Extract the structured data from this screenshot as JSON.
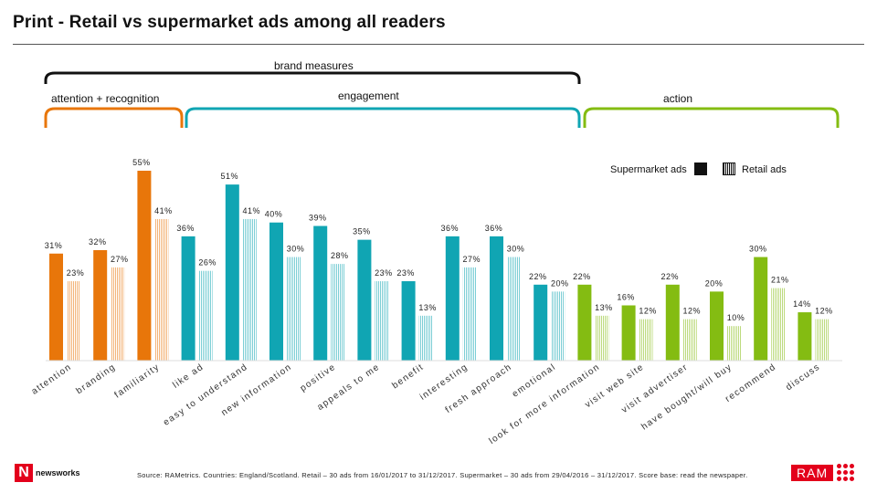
{
  "title": "Print - Retail vs supermarket ads among all readers",
  "headers": {
    "brand_measures": "brand measures",
    "attention_recognition": "attention + recognition",
    "engagement": "engagement",
    "action": "action"
  },
  "legend": {
    "supermarket": "Supermarket ads",
    "retail": "Retail ads"
  },
  "colors": {
    "orange": "#e8760a",
    "teal": "#10a5b3",
    "green": "#84bc12",
    "brace_black": "#111111"
  },
  "source": "Source: RAMetrics. Countries: England/Scotland. Retail – 30 ads from 16/01/2017 to 31/12/2017. Supermarket – 30 ads from 29/04/2016 – 31/12/2017. Score base: read the newspaper.",
  "logos": {
    "newsworks": "newsworks",
    "newsworks_mark": "N",
    "ram": "RAM"
  },
  "chart_data": {
    "type": "bar",
    "title": "Print - Retail vs supermarket ads among all readers",
    "ylim": [
      0,
      60
    ],
    "grid": false,
    "legend_position": "top-right",
    "series": [
      {
        "name": "Supermarket ads",
        "pattern": "solid"
      },
      {
        "name": "Retail ads",
        "pattern": "hatched"
      }
    ],
    "categories": [
      {
        "name": "attention",
        "group": "attention + recognition",
        "color": "#e8760a",
        "supermarket": 31,
        "retail": 23,
        "sup_label": "31%",
        "ret_label": "23%"
      },
      {
        "name": "branding",
        "group": "attention + recognition",
        "color": "#e8760a",
        "supermarket": 32,
        "retail": 27,
        "sup_label": "32%",
        "ret_label": "27%"
      },
      {
        "name": "familiarity",
        "group": "attention + recognition",
        "color": "#e8760a",
        "supermarket": 55,
        "retail": 41,
        "sup_label": "55%",
        "ret_label": "41%"
      },
      {
        "name": "like ad",
        "group": "engagement",
        "color": "#10a5b3",
        "supermarket": 36,
        "retail": 26,
        "sup_label": "36%",
        "ret_label": "26%"
      },
      {
        "name": "easy to understand",
        "group": "engagement",
        "color": "#10a5b3",
        "supermarket": 51,
        "retail": 41,
        "sup_label": "51%",
        "ret_label": "41%"
      },
      {
        "name": "new information",
        "group": "engagement",
        "color": "#10a5b3",
        "supermarket": 40,
        "retail": 30,
        "sup_label": "40%",
        "ret_label": "30%"
      },
      {
        "name": "positive",
        "group": "engagement",
        "color": "#10a5b3",
        "supermarket": 39,
        "retail": 28,
        "sup_label": "39%",
        "ret_label": "28%"
      },
      {
        "name": "appeals to me",
        "group": "engagement",
        "color": "#10a5b3",
        "supermarket": 35,
        "retail": 23,
        "sup_label": "35%",
        "ret_label": "23%"
      },
      {
        "name": "benefit",
        "group": "engagement",
        "color": "#10a5b3",
        "supermarket": 23,
        "retail": 13,
        "sup_label": "23%",
        "ret_label": "13%"
      },
      {
        "name": "interesting",
        "group": "engagement",
        "color": "#10a5b3",
        "supermarket": 36,
        "retail": 27,
        "sup_label": "36%",
        "ret_label": "27%"
      },
      {
        "name": "fresh approach",
        "group": "engagement",
        "color": "#10a5b3",
        "supermarket": 36,
        "retail": 30,
        "sup_label": "36%",
        "ret_label": "30%"
      },
      {
        "name": "emotional",
        "group": "engagement",
        "color": "#10a5b3",
        "supermarket": 22,
        "retail": 20,
        "sup_label": "22%",
        "ret_label": "20%"
      },
      {
        "name": "look for more information",
        "group": "action",
        "color": "#84bc12",
        "supermarket": 22,
        "retail": 13,
        "sup_label": "22%",
        "ret_label": "13%"
      },
      {
        "name": "visit web site",
        "group": "action",
        "color": "#84bc12",
        "supermarket": 16,
        "retail": 12,
        "sup_label": "16%",
        "ret_label": "12%"
      },
      {
        "name": "visit advertiser",
        "group": "action",
        "color": "#84bc12",
        "supermarket": 22,
        "retail": 12,
        "sup_label": "22%",
        "ret_label": "12%"
      },
      {
        "name": "have bought/will buy",
        "group": "action",
        "color": "#84bc12",
        "supermarket": 20,
        "retail": 10,
        "sup_label": "20%",
        "ret_label": "10%"
      },
      {
        "name": "recommend",
        "group": "action",
        "color": "#84bc12",
        "supermarket": 30,
        "retail": 21,
        "sup_label": "30%",
        "ret_label": "21%"
      },
      {
        "name": "discuss",
        "group": "action",
        "color": "#84bc12",
        "supermarket": 14,
        "retail": 12,
        "sup_label": "14%",
        "ret_label": "12%"
      }
    ]
  }
}
